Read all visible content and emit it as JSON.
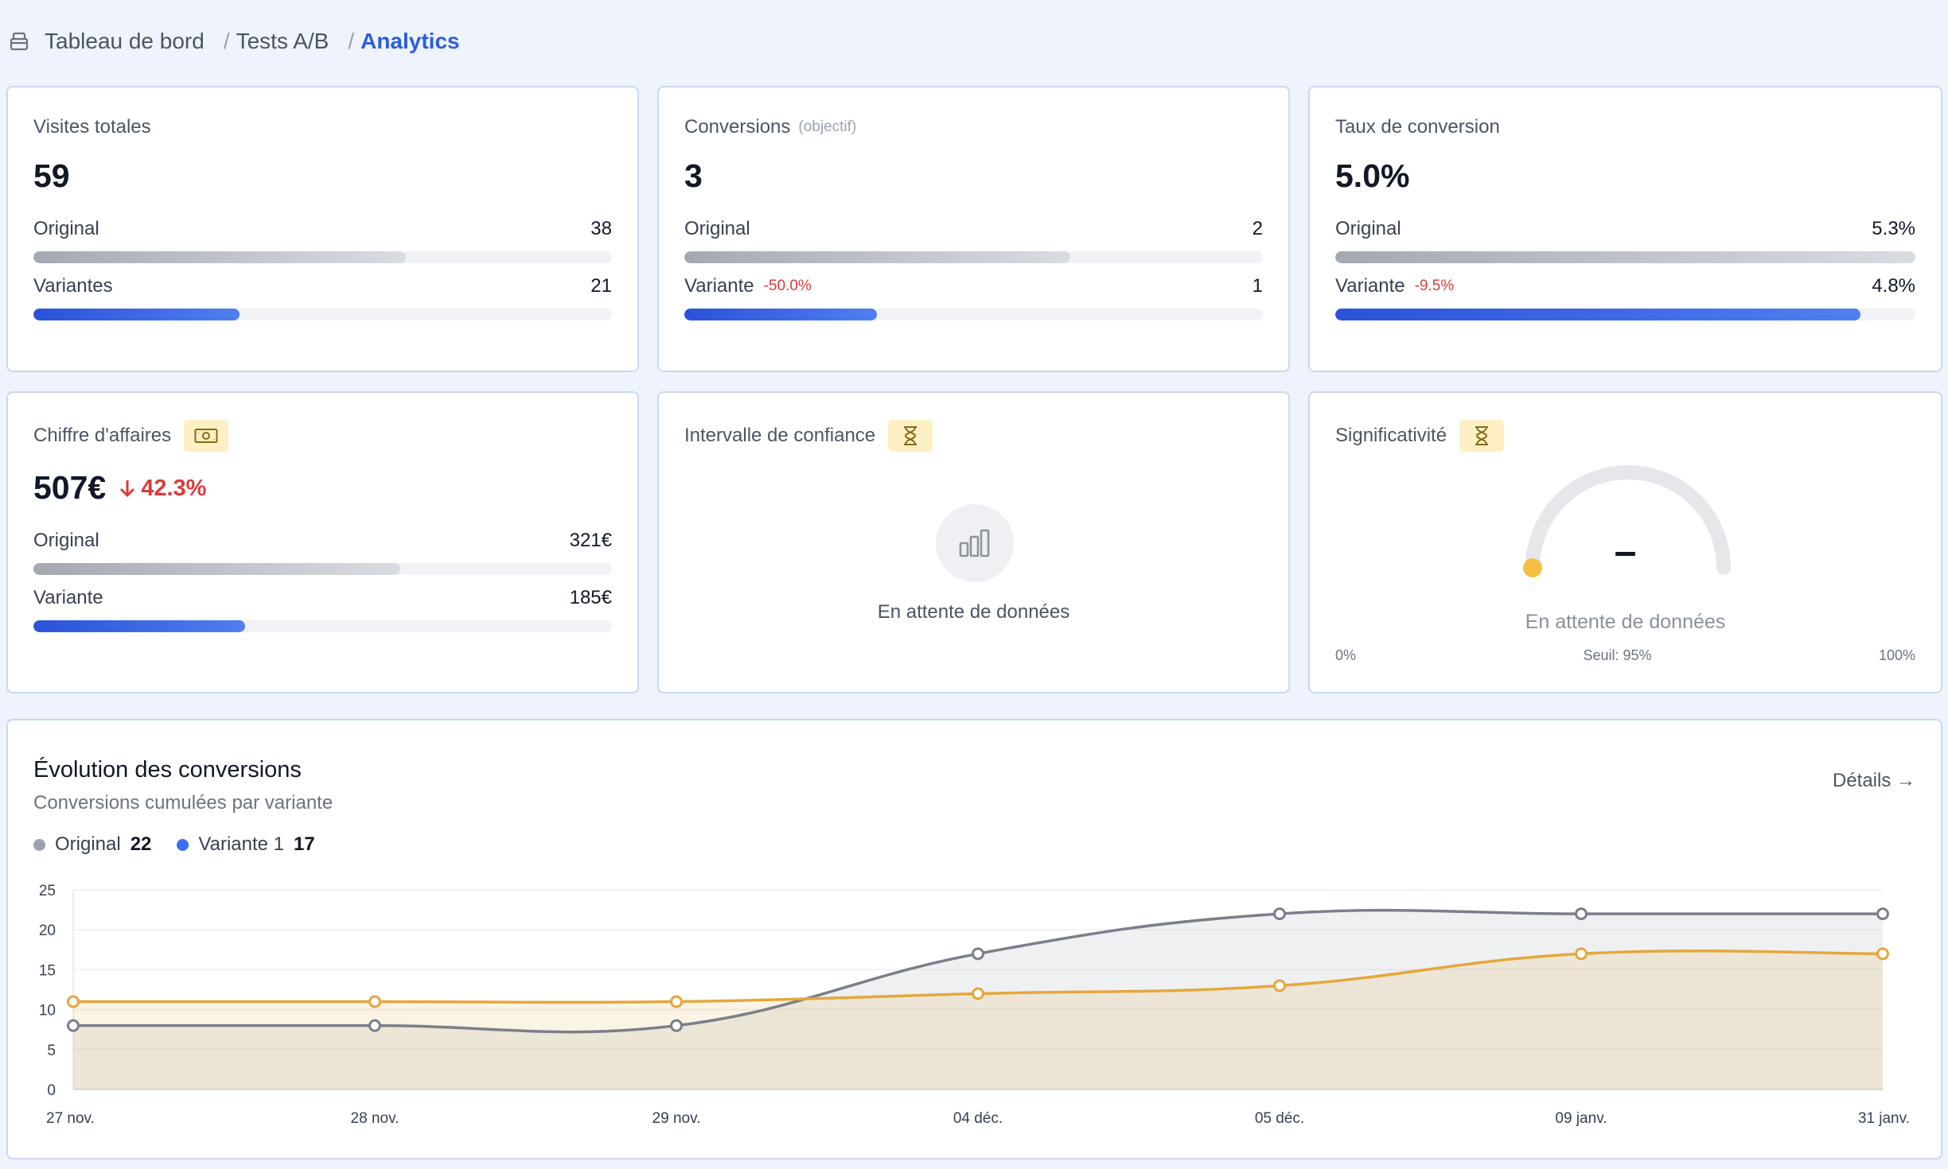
{
  "breadcrumb": {
    "home": "Tableau de bord",
    "section": "Tests A/B",
    "current": "Analytics"
  },
  "colors": {
    "accent_blue": "#2d5ce0",
    "original_line": "#7a7f8a",
    "variant_line": "#e5a73c",
    "negative": "#dc3b3b",
    "badge_bg": "#fdf0c4"
  },
  "visits": {
    "title": "Visites totales",
    "total": "59",
    "original_label": "Original",
    "original_value": "38",
    "original_fraction": 0.644,
    "variants_label": "Variantes",
    "variants_value": "21",
    "variants_fraction": 0.356
  },
  "conversions": {
    "title": "Conversions",
    "subtitle": "(objectif)",
    "total": "3",
    "original_label": "Original",
    "original_value": "2",
    "original_fraction": 0.667,
    "variant_label": "Variante",
    "variant_delta": "-50.0%",
    "variant_value": "1",
    "variant_fraction": 0.333
  },
  "rate": {
    "title": "Taux de conversion",
    "total": "5.0%",
    "original_label": "Original",
    "original_value": "5.3%",
    "original_fraction": 1.0,
    "variant_label": "Variante",
    "variant_delta": "-9.5%",
    "variant_value": "4.8%",
    "variant_fraction": 0.905
  },
  "revenue": {
    "title": "Chiffre d'affaires",
    "icon": "banknote-icon",
    "total": "507€",
    "delta": "42.3%",
    "original_label": "Original",
    "original_value": "321€",
    "original_fraction": 0.634,
    "variant_label": "Variante",
    "variant_value": "185€",
    "variant_fraction": 0.366
  },
  "confidence": {
    "title": "Intervalle de confiance",
    "icon": "hourglass-icon",
    "empty_icon": "bar-chart-icon",
    "empty_text": "En attente de données"
  },
  "significance": {
    "title": "Significativité",
    "icon": "hourglass-icon",
    "value": "–",
    "empty_text": "En attente de données",
    "min_label": "0%",
    "threshold_label": "Seuil: 95%",
    "max_label": "100%",
    "level": 0
  },
  "evolution": {
    "title": "Évolution des conversions",
    "subtitle": "Conversions cumulées par variante",
    "details": "Détails →",
    "legend": [
      {
        "name": "Original",
        "count": "22",
        "color": "#9ca3af"
      },
      {
        "name": "Variante 1",
        "count": "17",
        "color": "#3b6ef0"
      }
    ]
  },
  "chart_data": {
    "type": "area",
    "categories": [
      "27 nov.",
      "28 nov.",
      "29 nov.",
      "04 déc.",
      "05 déc.",
      "09 janv.",
      "31 janv."
    ],
    "series": [
      {
        "name": "Original",
        "values": [
          8,
          8,
          8,
          17,
          22,
          22,
          22
        ],
        "color": "#7a7f8a"
      },
      {
        "name": "Variante 1",
        "values": [
          11,
          11,
          11,
          12,
          13,
          17,
          17
        ],
        "color": "#e5a73c"
      }
    ],
    "ylim": [
      0,
      25
    ],
    "yticks": [
      0,
      5,
      10,
      15,
      20,
      25
    ],
    "grid": true
  }
}
